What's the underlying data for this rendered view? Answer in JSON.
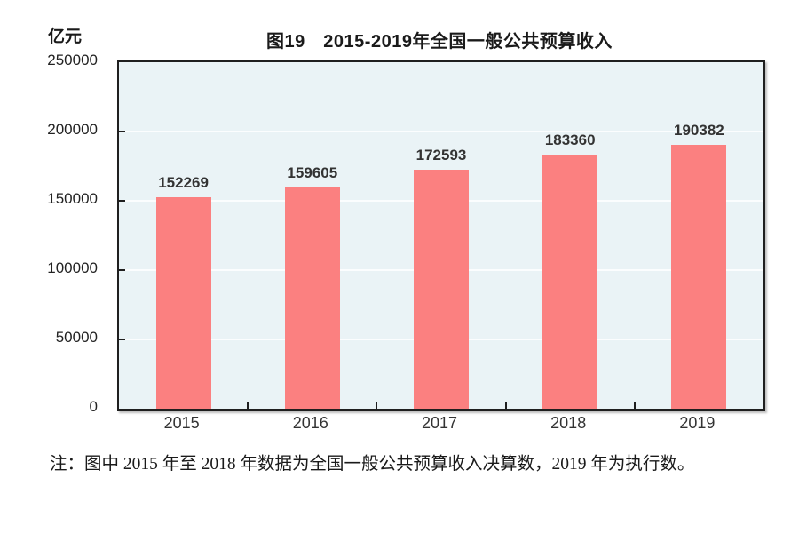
{
  "figure": {
    "unit_label": "亿元",
    "title": "图19　2015-2019年全国一般公共预算收入",
    "note": "注：图中 2015 年至 2018 年数据为全国一般公共预算收入决算数，2019 年为执行数。"
  },
  "chart_data": {
    "type": "bar",
    "title": "图19　2015-2019年全国一般公共预算收入",
    "categories": [
      "2015",
      "2016",
      "2017",
      "2018",
      "2019"
    ],
    "values": [
      152269,
      159605,
      172593,
      183360,
      190382
    ],
    "xlabel": "",
    "ylabel": "亿元",
    "ylim": [
      0,
      250000
    ],
    "yticks": [
      0,
      50000,
      100000,
      150000,
      200000,
      250000
    ],
    "grid": "horizontal",
    "legend": "none",
    "data_labels": true,
    "colors": {
      "bar": "#fb8080",
      "plot_background": "#eaf3f6",
      "gridline": "#fbfdfe",
      "axis": "#1f1f1f",
      "value_label": "#333333",
      "tick_label": "#222222"
    }
  }
}
